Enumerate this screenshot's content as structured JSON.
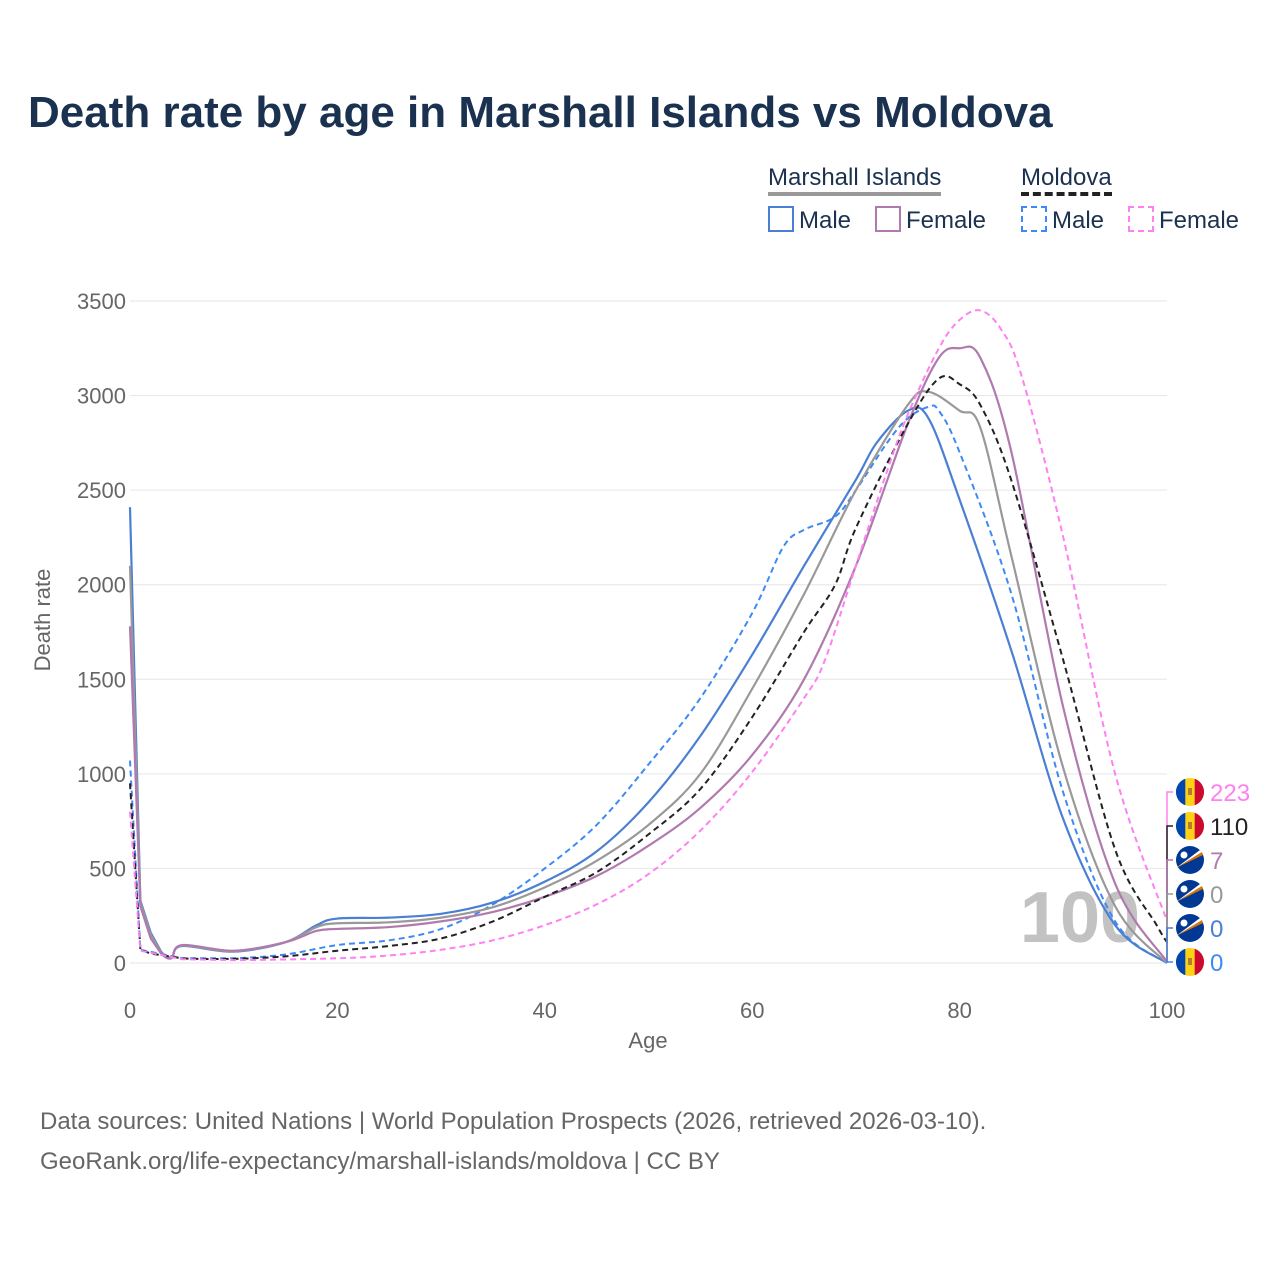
{
  "title": "Death rate by age in Marshall Islands vs Moldova",
  "legend": {
    "group1": "Marshall Islands",
    "group2": "Moldova",
    "male": "Male",
    "female": "Female"
  },
  "source": {
    "line1": "Data sources: United Nations | World Population Prospects (2026, retrieved 2026-03-10).",
    "line2": "GeoRank.org/life-expectancy/marshall-islands/moldova | CC BY"
  },
  "watermark": "100",
  "chart_data": {
    "type": "line",
    "xlabel": "Age",
    "ylabel": "Death rate",
    "xlim": [
      0,
      100
    ],
    "ylim": [
      0,
      3500
    ],
    "xticks": [
      0,
      20,
      40,
      60,
      80,
      100
    ],
    "yticks": [
      0,
      500,
      1000,
      1500,
      2000,
      2500,
      3000,
      3500
    ],
    "series": [
      {
        "name": "Moldova Female",
        "color": "#ff80f0",
        "dash": true,
        "end_label": "223",
        "flag": "moldova",
        "x": [
          0,
          1,
          5,
          10,
          20,
          25,
          30,
          35,
          40,
          45,
          50,
          55,
          60,
          65,
          67,
          70,
          73,
          75,
          78,
          80,
          82,
          84,
          86,
          90,
          95,
          100
        ],
        "y": [
          800,
          65,
          20,
          15,
          25,
          40,
          70,
          120,
          200,
          310,
          470,
          700,
          1010,
          1400,
          1600,
          2100,
          2600,
          2900,
          3250,
          3400,
          3450,
          3350,
          3100,
          2250,
          1000,
          223
        ]
      },
      {
        "name": "Moldova",
        "color": "#222222",
        "dash": true,
        "end_label": "110",
        "flag": "moldova",
        "x": [
          0,
          1,
          2,
          5,
          10,
          15,
          20,
          25,
          30,
          35,
          40,
          45,
          50,
          55,
          60,
          65,
          68,
          70,
          75,
          78,
          80,
          82,
          85,
          90,
          95,
          99,
          100
        ],
        "y": [
          950,
          70,
          50,
          25,
          22,
          35,
          65,
          90,
          130,
          220,
          350,
          480,
          680,
          920,
          1300,
          1750,
          2000,
          2300,
          2850,
          3090,
          3060,
          2950,
          2550,
          1600,
          600,
          200,
          110
        ]
      },
      {
        "name": "Marshall Islands Female",
        "color": "#b07aae",
        "dash": false,
        "end_label": "7",
        "flag": "marshall",
        "x": [
          0,
          1,
          2,
          3,
          4,
          5,
          10,
          15,
          18,
          20,
          25,
          30,
          35,
          40,
          45,
          50,
          55,
          60,
          65,
          70,
          75,
          78,
          80,
          82,
          85,
          90,
          95,
          100
        ],
        "y": [
          1780,
          300,
          130,
          50,
          25,
          95,
          65,
          110,
          170,
          180,
          190,
          220,
          270,
          350,
          460,
          620,
          820,
          1100,
          1500,
          2100,
          2850,
          3200,
          3250,
          3200,
          2700,
          1350,
          420,
          7
        ]
      },
      {
        "name": "Marshall Islands",
        "color": "#999999",
        "dash": false,
        "end_label": "0",
        "flag": "marshall",
        "x": [
          0,
          1,
          2,
          3,
          4,
          5,
          10,
          15,
          18,
          20,
          25,
          30,
          35,
          40,
          45,
          50,
          55,
          60,
          65,
          70,
          75,
          77,
          80,
          82,
          85,
          90,
          95,
          100
        ],
        "y": [
          2100,
          320,
          150,
          55,
          28,
          92,
          62,
          110,
          190,
          210,
          215,
          240,
          295,
          400,
          540,
          730,
          1000,
          1450,
          1950,
          2500,
          2950,
          3020,
          2920,
          2830,
          2150,
          1030,
          300,
          0
        ]
      },
      {
        "name": "Marshall Islands Male",
        "color": "#4a7fd4",
        "dash": false,
        "end_label": "0",
        "flag": "marshall",
        "x": [
          0,
          1,
          2,
          3,
          4,
          5,
          10,
          15,
          18,
          20,
          25,
          30,
          35,
          40,
          45,
          50,
          55,
          60,
          65,
          70,
          72,
          75,
          77,
          80,
          85,
          90,
          95,
          100
        ],
        "y": [
          2410,
          330,
          160,
          60,
          30,
          90,
          60,
          110,
          200,
          235,
          240,
          260,
          320,
          430,
          590,
          850,
          1200,
          1630,
          2100,
          2555,
          2750,
          2920,
          2880,
          2450,
          1650,
          760,
          200,
          0
        ]
      },
      {
        "name": "Moldova Male",
        "color": "#3d8af7",
        "dash": true,
        "end_label": "0",
        "flag": "moldova",
        "x": [
          0,
          1,
          5,
          10,
          15,
          20,
          25,
          30,
          35,
          40,
          45,
          50,
          55,
          60,
          63,
          65,
          68,
          70,
          73,
          75,
          77,
          78,
          80,
          85,
          90,
          95,
          100
        ],
        "y": [
          1070,
          70,
          25,
          25,
          45,
          95,
          120,
          180,
          310,
          500,
          730,
          1050,
          1400,
          1850,
          2200,
          2290,
          2360,
          2500,
          2750,
          2880,
          2940,
          2920,
          2700,
          1950,
          900,
          220,
          0
        ]
      }
    ]
  }
}
